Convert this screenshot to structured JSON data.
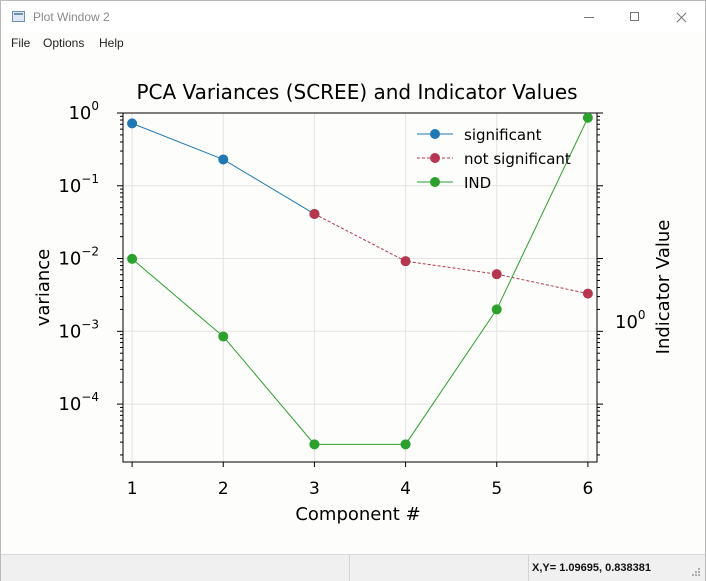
{
  "window": {
    "title": "Plot Window 2"
  },
  "menu": {
    "items": [
      "File",
      "Options",
      "Help"
    ]
  },
  "status": {
    "coords": "X,Y= 1.09695, 0.838381"
  },
  "colors": {
    "significant": "#1f77b4",
    "not_significant": "#b5364f",
    "ind": "#2ca02c"
  },
  "chart_data": {
    "type": "line",
    "title": "PCA Variances (SCREE) and Indicator Values",
    "xlabel": "Component #",
    "ylabel": "variance",
    "y2label": "Indicator Value",
    "xlim": [
      0.9,
      6.1
    ],
    "xticks": [
      1,
      2,
      3,
      4,
      5,
      6
    ],
    "ylim": [
      1.6e-05,
      1
    ],
    "yscale": "log",
    "yticks": [
      {
        "value": 1,
        "base": "10",
        "exp": "0"
      },
      {
        "value": 0.1,
        "base": "10",
        "exp": "−1"
      },
      {
        "value": 0.01,
        "base": "10",
        "exp": "−2"
      },
      {
        "value": 0.001,
        "base": "10",
        "exp": "−3"
      },
      {
        "value": 0.0001,
        "base": "10",
        "exp": "−4"
      }
    ],
    "y2scale": "log",
    "y2ticks": [
      {
        "value": 1,
        "base": "10",
        "exp": "0"
      }
    ],
    "grid": true,
    "legend_position": "top-right",
    "series": [
      {
        "name": "significant",
        "axis": "left",
        "style": "solid",
        "color": "#1f77b4",
        "x": [
          1,
          2,
          3
        ],
        "y": [
          0.72,
          0.23,
          0.041
        ]
      },
      {
        "name": "not significant",
        "axis": "left",
        "style": "dashed",
        "color": "#b5364f",
        "x": [
          3,
          4,
          5,
          6
        ],
        "y": [
          0.041,
          0.0092,
          0.0061,
          0.0033
        ]
      },
      {
        "name": "IND",
        "axis": "left",
        "style": "solid",
        "color": "#2ca02c",
        "x": [
          1,
          2,
          3,
          4,
          5,
          6
        ],
        "y": [
          0.0099,
          0.00085,
          2.8e-05,
          2.8e-05,
          0.002,
          0.86
        ]
      }
    ]
  }
}
